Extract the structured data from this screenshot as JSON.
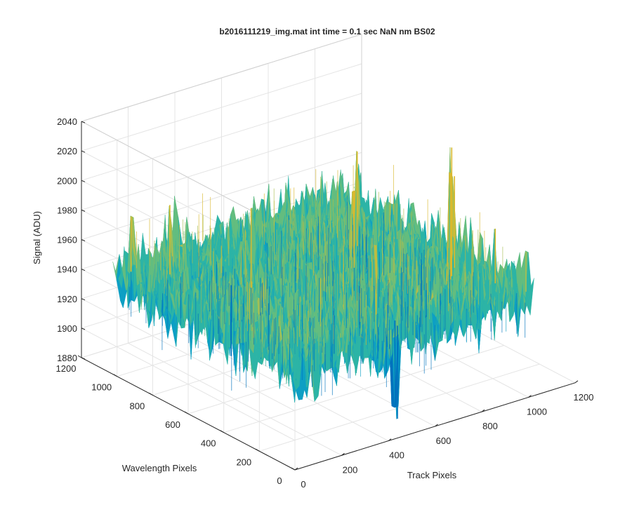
{
  "chart_data": {
    "type": "surface",
    "title": "b2016111219_img.mat int time = 0.1 sec  NaN nm BS02",
    "xlabel": "Track Pixels",
    "ylabel": "Wavelength Pixels",
    "zlabel": "Signal (ADU)",
    "xlim": [
      0,
      1200
    ],
    "ylim": [
      0,
      1200
    ],
    "zlim": [
      1880,
      2040
    ],
    "data_xlim": [
      0,
      1024
    ],
    "data_ylim": [
      0,
      1024
    ],
    "x_ticks": [
      0,
      200,
      400,
      600,
      800,
      1000,
      1200
    ],
    "y_ticks": [
      0,
      200,
      400,
      600,
      800,
      1000,
      1200
    ],
    "z_ticks": [
      1880,
      1900,
      1920,
      1940,
      1960,
      1980,
      2000,
      2020,
      2040
    ],
    "x_tick_labels": [
      "0",
      "200",
      "400",
      "600",
      "800",
      "1000",
      "1200"
    ],
    "y_tick_labels": [
      "0",
      "200",
      "400",
      "600",
      "800",
      "1000",
      "1200"
    ],
    "z_tick_labels": [
      "1880",
      "1900",
      "1920",
      "1940",
      "1960",
      "1980",
      "2000",
      "2020",
      "2040"
    ],
    "grid": true,
    "colormap": "parula",
    "colors": [
      "#0072bd",
      "#0d9fc4",
      "#2cb4a6",
      "#63bd7f",
      "#a8bf52",
      "#d9b92e"
    ],
    "mean_signal": 1948,
    "noise_range": [
      1900,
      2000
    ],
    "spikes": [
      {
        "x": 900,
        "y": 300,
        "z": 2035
      },
      {
        "x": 880,
        "y": 280,
        "z": 2020
      },
      {
        "x": 950,
        "y": 350,
        "z": 2010
      },
      {
        "x": 800,
        "y": 700,
        "z": 2012
      },
      {
        "x": 680,
        "y": 560,
        "z": 2000
      },
      {
        "x": 60,
        "y": 1000,
        "z": 1985
      },
      {
        "x": 150,
        "y": 900,
        "z": 1995
      },
      {
        "x": 300,
        "y": 640,
        "z": 2002
      },
      {
        "x": 1020,
        "y": 40,
        "z": 1975
      },
      {
        "x": 500,
        "y": 200,
        "z": 1995
      },
      {
        "x": 980,
        "y": 160,
        "z": 1985
      }
    ],
    "dips": [
      {
        "x": 500,
        "y": 80,
        "z": 1885
      },
      {
        "x": 520,
        "y": 120,
        "z": 1890
      },
      {
        "x": 260,
        "y": 700,
        "z": 1900
      }
    ]
  }
}
